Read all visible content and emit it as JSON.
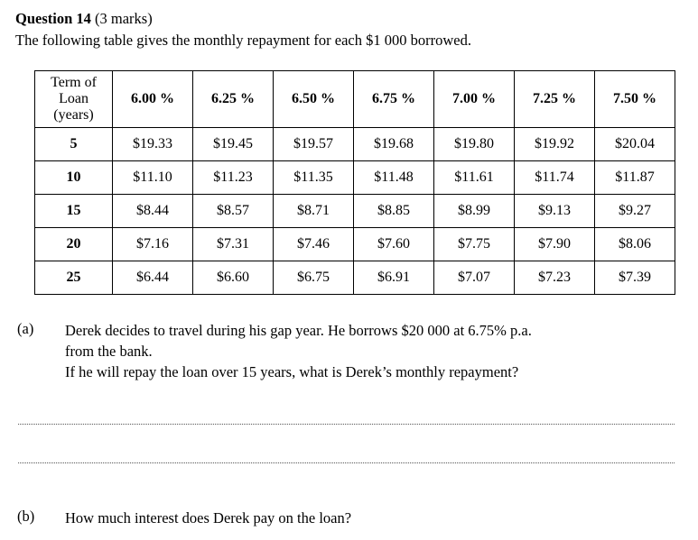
{
  "question": {
    "number_label": "Question 14",
    "marks": "(3 marks)",
    "intro": "The following table gives the monthly repayment for each $1 000 borrowed."
  },
  "table": {
    "term_header": [
      "Term of",
      "Loan",
      "(years)"
    ],
    "rate_headers": [
      "6.00 %",
      "6.25 %",
      "6.50 %",
      "6.75 %",
      "7.00 %",
      "7.25 %",
      "7.50 %"
    ],
    "rows": [
      {
        "term": "5",
        "values": [
          "$19.33",
          "$19.45",
          "$19.57",
          "$19.68",
          "$19.80",
          "$19.92",
          "$20.04"
        ]
      },
      {
        "term": "10",
        "values": [
          "$11.10",
          "$11.23",
          "$11.35",
          "$11.48",
          "$11.61",
          "$11.74",
          "$11.87"
        ]
      },
      {
        "term": "15",
        "values": [
          "$8.44",
          "$8.57",
          "$8.71",
          "$8.85",
          "$8.99",
          "$9.13",
          "$9.27"
        ]
      },
      {
        "term": "20",
        "values": [
          "$7.16",
          "$7.31",
          "$7.46",
          "$7.60",
          "$7.75",
          "$7.90",
          "$8.06"
        ]
      },
      {
        "term": "25",
        "values": [
          "$6.44",
          "$6.60",
          "$6.75",
          "$6.91",
          "$7.07",
          "$7.23",
          "$7.39"
        ]
      }
    ]
  },
  "part_a": {
    "label": "(a)",
    "line1": "Derek decides to travel during his gap year. He borrows $20 000 at 6.75% p.a.",
    "line2": "from the bank.",
    "line3": "If he will repay the loan over 15 years, what is Derek’s monthly repayment?"
  },
  "part_b": {
    "label": "(b)",
    "text": "How much interest does Derek pay on the loan?"
  }
}
